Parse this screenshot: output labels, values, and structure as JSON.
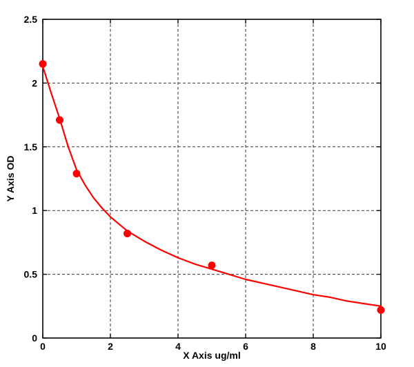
{
  "chart_data": {
    "type": "scatter",
    "title": "",
    "xlabel": "X Axis ug/ml",
    "ylabel": "Y Axis OD",
    "xlim": [
      0,
      10
    ],
    "ylim": [
      0,
      2.5
    ],
    "x_ticks": [
      0,
      2,
      4,
      6,
      8,
      10
    ],
    "x_tick_labels": [
      "0",
      "2",
      "4",
      "6",
      "8",
      "10"
    ],
    "y_ticks": [
      0,
      0.5,
      1,
      1.5,
      2,
      2.5
    ],
    "y_tick_labels": [
      "0",
      "0.5",
      "1",
      "1.5",
      "2",
      "2.5"
    ],
    "grid": true,
    "grid_style": "dashed",
    "legend_position": "none",
    "points": [
      [
        0,
        2.15
      ],
      [
        0.5,
        1.71
      ],
      [
        1,
        1.29
      ],
      [
        2.5,
        0.82
      ],
      [
        5,
        0.57
      ],
      [
        10,
        0.22
      ]
    ],
    "fit_curve": [
      [
        0,
        2.13
      ],
      [
        0.25,
        1.92
      ],
      [
        0.5,
        1.72
      ],
      [
        0.75,
        1.5
      ],
      [
        1,
        1.32
      ],
      [
        1.25,
        1.2
      ],
      [
        1.5,
        1.1
      ],
      [
        1.75,
        1.02
      ],
      [
        2,
        0.95
      ],
      [
        2.5,
        0.84
      ],
      [
        3,
        0.76
      ],
      [
        3.5,
        0.69
      ],
      [
        4,
        0.63
      ],
      [
        4.5,
        0.58
      ],
      [
        5,
        0.54
      ],
      [
        5.5,
        0.5
      ],
      [
        6,
        0.46
      ],
      [
        6.5,
        0.43
      ],
      [
        7,
        0.4
      ],
      [
        7.5,
        0.37
      ],
      [
        8,
        0.34
      ],
      [
        8.5,
        0.32
      ],
      [
        9,
        0.29
      ],
      [
        9.5,
        0.27
      ],
      [
        10,
        0.25
      ]
    ],
    "colors": {
      "marker": "#ff0000",
      "line": "#ff0000",
      "axis": "#000000",
      "grid": "#333333",
      "background": "#ffffff"
    }
  }
}
